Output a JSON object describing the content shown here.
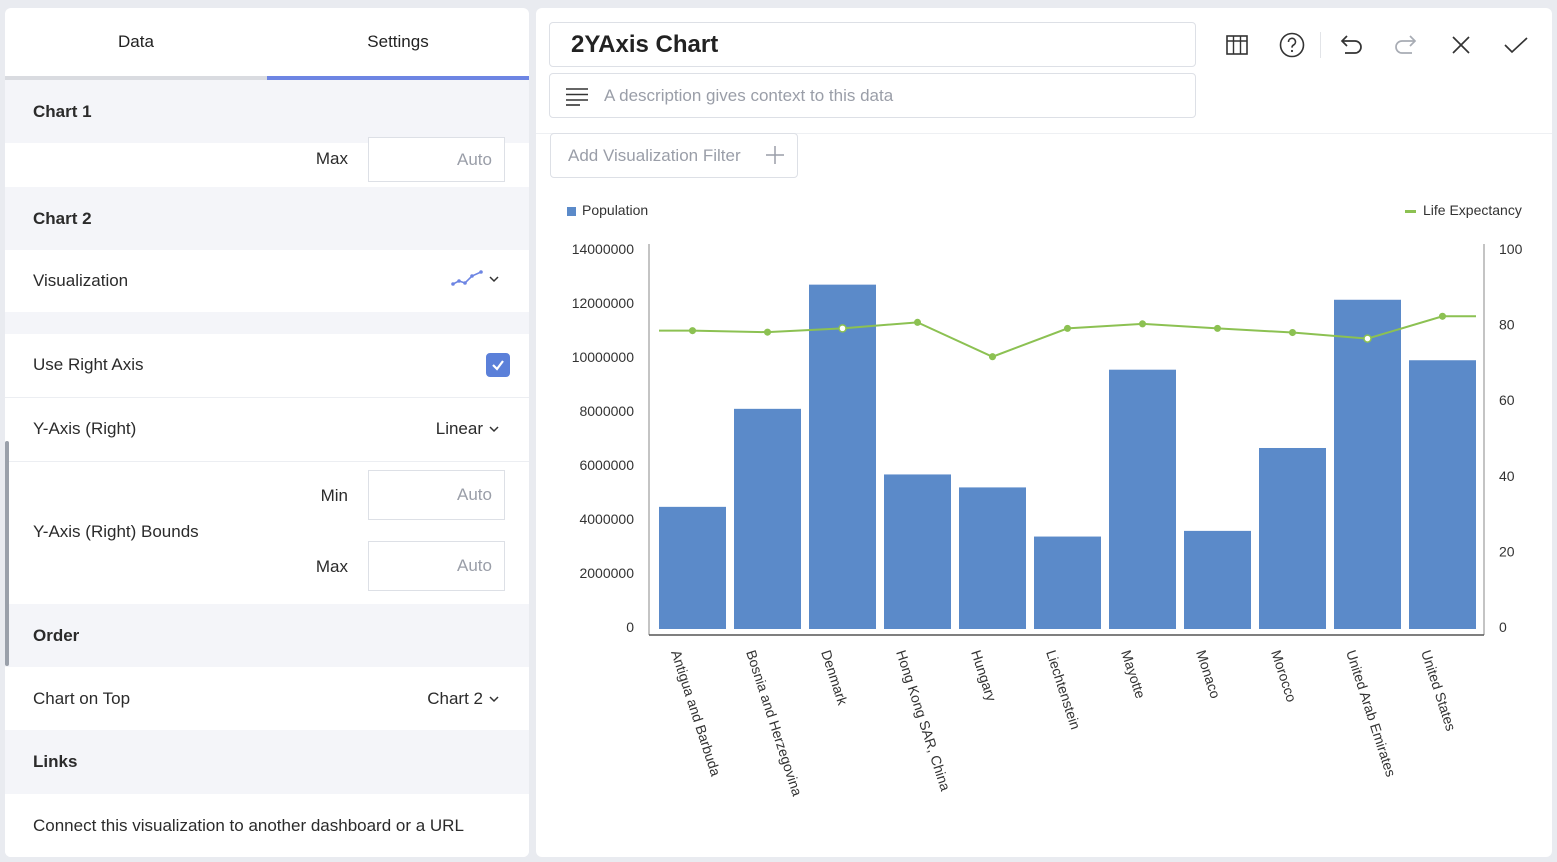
{
  "tabs": {
    "data": "Data",
    "settings": "Settings"
  },
  "settings": {
    "chart1": {
      "header": "Chart 1",
      "max_label": "Max",
      "max_placeholder": "Auto"
    },
    "chart2": {
      "header": "Chart 2",
      "visualization_label": "Visualization",
      "visualization_icon": "line-chart-icon",
      "use_right_axis_label": "Use Right Axis",
      "use_right_axis_checked": true,
      "yaxis_right_label": "Y-Axis (Right)",
      "yaxis_right_value": "Linear",
      "bounds_label": "Y-Axis (Right) Bounds",
      "min_label": "Min",
      "min_placeholder": "Auto",
      "max_label": "Max",
      "max_placeholder": "Auto"
    },
    "order": {
      "header": "Order",
      "chart_on_top_label": "Chart on Top",
      "chart_on_top_value": "Chart 2"
    },
    "links": {
      "header": "Links",
      "description": "Connect this visualization to another dashboard or a URL"
    }
  },
  "editor": {
    "title": "2YAxis Chart",
    "description_placeholder": "A description gives context to this data",
    "filter_button": "Add Visualization Filter",
    "toolbar": [
      "table-icon",
      "help-icon",
      "undo-icon",
      "redo-icon",
      "close-icon",
      "check-icon"
    ]
  },
  "colors": {
    "accent": "#6d85e3",
    "bar": "#5b8ac9",
    "line": "#8cc152",
    "checkbox": "#5b80d9"
  },
  "chart_data": {
    "type": "bar",
    "categories": [
      "Antigua and Barbuda",
      "Bosnia and Herzegovina",
      "Denmark",
      "Hong Kong SAR, China",
      "Hungary",
      "Liechtenstein",
      "Mayotte",
      "Monaco",
      "Morocco",
      "United Arab Emirates",
      "United States"
    ],
    "series": [
      {
        "name": "Population",
        "axis": "left",
        "type": "bar",
        "values": [
          4450000,
          8080000,
          12680000,
          5650000,
          5170000,
          3350000,
          9530000,
          3560000,
          6630000,
          12120000,
          9880000
        ]
      },
      {
        "name": "Life Expectancy",
        "axis": "right",
        "type": "line",
        "values": [
          78.4,
          78.0,
          79.0,
          80.6,
          71.5,
          79.0,
          80.2,
          79.0,
          77.9,
          76.3,
          82.2
        ]
      }
    ],
    "yticks_left": [
      "0",
      "2000000",
      "4000000",
      "6000000",
      "8000000",
      "10000000",
      "12000000",
      "14000000"
    ],
    "yticks_right": [
      "0",
      "20",
      "40",
      "60",
      "80",
      "100"
    ],
    "ylim_left": [
      0,
      14000000
    ],
    "ylim_right": [
      0,
      100
    ],
    "legend": [
      "Population",
      "Life Expectancy"
    ],
    "grid": false
  }
}
